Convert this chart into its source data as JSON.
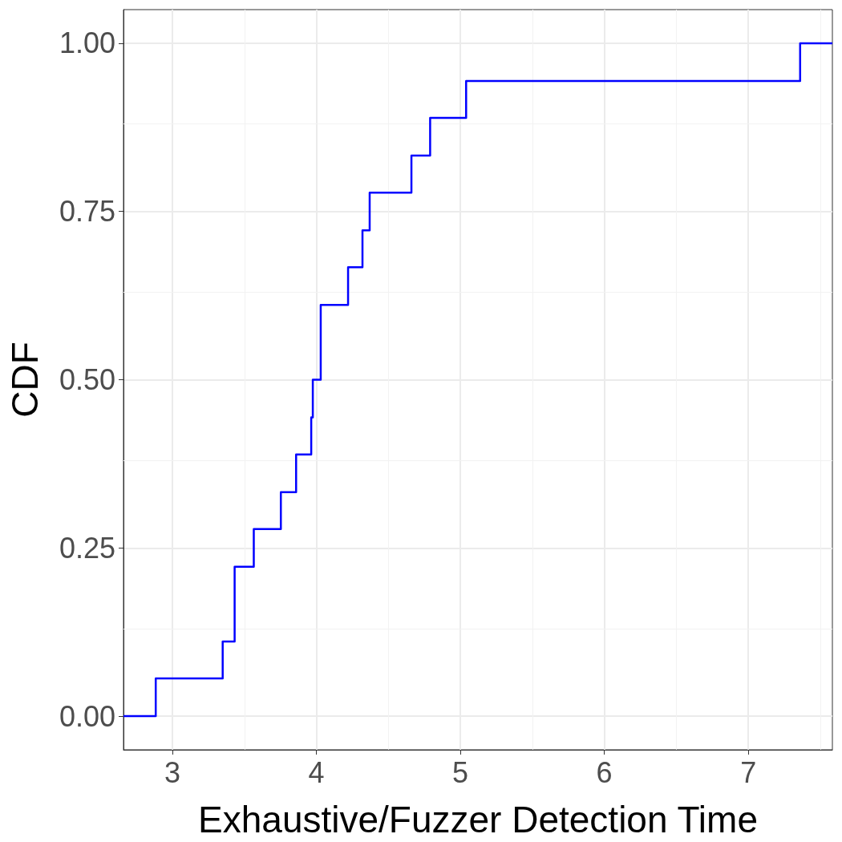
{
  "chart_data": {
    "type": "step",
    "xlabel": "Exhaustive/Fuzzer Detection Time",
    "ylabel": "CDF",
    "x": [
      2.66,
      2.884,
      3.349,
      3.432,
      3.432,
      3.565,
      3.753,
      3.859,
      3.964,
      3.975,
      4.03,
      4.03,
      4.22,
      4.32,
      4.37,
      4.66,
      4.79,
      5.04,
      7.36,
      7.584
    ],
    "series": [
      {
        "color": "#0000ff",
        "values": [
          0,
          0.056,
          0.111,
          0.167,
          0.222,
          0.278,
          0.333,
          0.389,
          0.444,
          0.5,
          0.556,
          0.611,
          0.667,
          0.722,
          0.778,
          0.833,
          0.889,
          0.944,
          1,
          1
        ]
      }
    ],
    "xlim": [
      2.66,
      7.584
    ],
    "xticks": [
      3,
      4,
      5,
      6,
      7
    ],
    "ylim": [
      -0.05,
      1.05
    ],
    "yticks": [
      {
        "value": 0,
        "label": "0.00"
      },
      {
        "value": 0.25,
        "label": "0.25"
      },
      {
        "value": 0.5,
        "label": "0.50"
      },
      {
        "value": 0.75,
        "label": "0.75"
      },
      {
        "value": 1,
        "label": "1.00"
      }
    ],
    "grid": true,
    "marker": "none",
    "line_style": "solid"
  }
}
